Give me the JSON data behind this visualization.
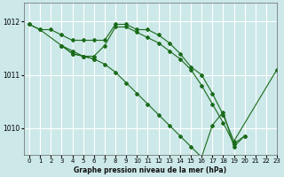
{
  "title": "Graphe pression niveau de la mer (hPa)",
  "bg_color": "#cce8e8",
  "grid_color": "#ffffff",
  "line_color": "#1a6b1a",
  "xlim": [
    -0.5,
    23
  ],
  "ylim": [
    1009.5,
    1012.35
  ],
  "yticks": [
    1010,
    1011,
    1012
  ],
  "xticks": [
    0,
    1,
    2,
    3,
    4,
    5,
    6,
    7,
    8,
    9,
    10,
    11,
    12,
    13,
    14,
    15,
    16,
    17,
    18,
    19,
    20,
    21,
    22,
    23
  ],
  "series": [
    {
      "x": [
        0,
        1,
        2,
        3,
        4,
        5,
        6,
        7,
        8,
        9,
        10,
        11,
        12,
        13,
        14,
        15,
        16,
        17,
        18,
        19,
        23
      ],
      "y": [
        1011.95,
        1011.85,
        1011.85,
        1011.75,
        1011.65,
        1011.65,
        1011.65,
        1011.65,
        1011.95,
        1011.95,
        1011.85,
        1011.85,
        1011.75,
        1011.6,
        1011.4,
        1011.15,
        1011.0,
        1010.65,
        1010.25,
        1009.75,
        1011.1
      ]
    },
    {
      "x": [
        0,
        1,
        3,
        4,
        5,
        6,
        7,
        8,
        9,
        10,
        11,
        12,
        13,
        14,
        15,
        16,
        17,
        18,
        19,
        20
      ],
      "y": [
        1011.95,
        1011.85,
        1011.55,
        1011.4,
        1011.35,
        1011.35,
        1011.55,
        1011.9,
        1011.9,
        1011.8,
        1011.7,
        1011.6,
        1011.45,
        1011.3,
        1011.1,
        1010.8,
        1010.45,
        1010.1,
        1009.7,
        1009.85
      ]
    },
    {
      "x": [
        3,
        4,
        5,
        6
      ],
      "y": [
        1011.55,
        1011.4,
        1011.35,
        1011.3
      ]
    },
    {
      "x": [
        3,
        4,
        5,
        6,
        7,
        8,
        9,
        10,
        11,
        12,
        13,
        14,
        15,
        16,
        17,
        18,
        19,
        20
      ],
      "y": [
        1011.55,
        1011.45,
        1011.35,
        1011.3,
        1011.2,
        1011.05,
        1010.85,
        1010.65,
        1010.45,
        1010.25,
        1010.05,
        1009.85,
        1009.65,
        1009.45,
        1010.05,
        1010.3,
        1009.65,
        1009.85
      ]
    }
  ]
}
